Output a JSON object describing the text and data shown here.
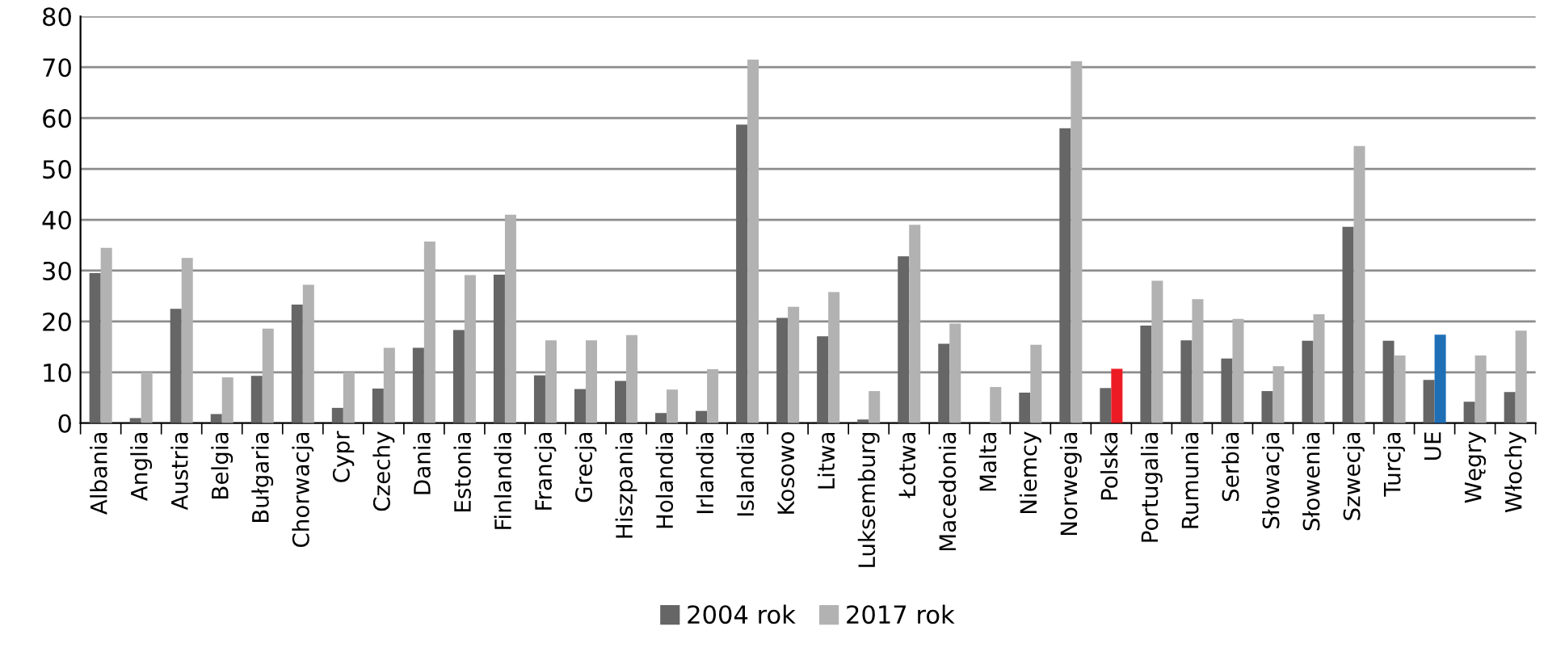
{
  "chart_data": {
    "type": "bar",
    "categories": [
      "Albania",
      "Anglia",
      "Austria",
      "Belgia",
      "Bułgaria",
      "Chorwacja",
      "Cypr",
      "Czechy",
      "Dania",
      "Estonia",
      "Finlandia",
      "Francja",
      "Grecja",
      "Hiszpania",
      "Holandia",
      "Irlandia",
      "Islandia",
      "Kosowo",
      "Litwa",
      "Luksemburg",
      "Łotwa",
      "Macedonia",
      "Malta",
      "Niemcy",
      "Norwegia",
      "Polska",
      "Portugalia",
      "Rumunia",
      "Serbia",
      "Słowacja",
      "Słowenia",
      "Szwecja",
      "Turcja",
      "UE",
      "Węgry",
      "Włochy"
    ],
    "series": [
      {
        "name": "2004 rok",
        "color": "#666666",
        "values": [
          29.5,
          1,
          22.5,
          1.8,
          9.3,
          23.3,
          3,
          6.8,
          14.8,
          18.3,
          29.2,
          9.4,
          6.7,
          8.3,
          2,
          2.4,
          58.7,
          20.7,
          17.1,
          0.7,
          32.8,
          15.6,
          null,
          6,
          58,
          6.9,
          19.2,
          16.3,
          12.7,
          6.3,
          16.2,
          38.6,
          16.2,
          8.5,
          4.2,
          6.1
        ]
      },
      {
        "name": "2017 rok",
        "color": "#b2b2b2",
        "colors": [
          "#b2b2b2",
          "#b2b2b2",
          "#b2b2b2",
          "#b2b2b2",
          "#b2b2b2",
          "#b2b2b2",
          "#b2b2b2",
          "#b2b2b2",
          "#b2b2b2",
          "#b2b2b2",
          "#b2b2b2",
          "#b2b2b2",
          "#b2b2b2",
          "#b2b2b2",
          "#b2b2b2",
          "#b2b2b2",
          "#b2b2b2",
          "#b2b2b2",
          "#b2b2b2",
          "#b2b2b2",
          "#b2b2b2",
          "#b2b2b2",
          "#b2b2b2",
          "#b2b2b2",
          "#b2b2b2",
          "#ed1c24",
          "#b2b2b2",
          "#b2b2b2",
          "#b2b2b2",
          "#b2b2b2",
          "#b2b2b2",
          "#b2b2b2",
          "#b2b2b2",
          "#1f6fb6",
          "#b2b2b2",
          "#b2b2b2"
        ],
        "values": [
          34.5,
          10,
          32.5,
          9,
          18.6,
          27.2,
          10,
          14.8,
          35.7,
          29.1,
          41,
          16.3,
          16.3,
          17.3,
          6.6,
          10.6,
          71.5,
          22.9,
          25.8,
          6.3,
          39,
          19.6,
          7.1,
          15.4,
          71.2,
          10.7,
          28,
          24.4,
          20.5,
          11.2,
          21.4,
          54.5,
          13.3,
          17.4,
          13.3,
          18.2
        ]
      }
    ],
    "ylim": [
      0,
      80
    ],
    "yticks": [
      0,
      10,
      20,
      30,
      40,
      50,
      60,
      70,
      80
    ],
    "grid": "y",
    "legend": "bottom"
  }
}
